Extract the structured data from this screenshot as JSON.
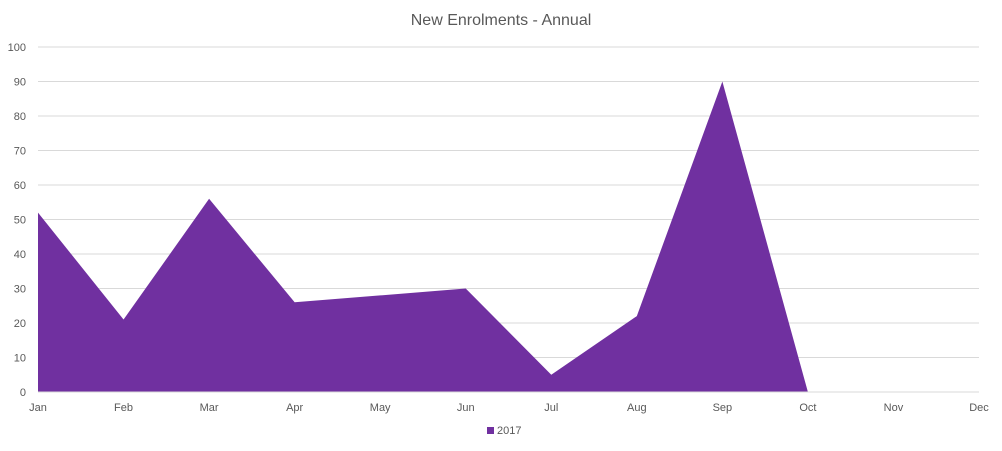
{
  "chart_data": {
    "type": "area",
    "title": "New Enrolments - Annual",
    "xlabel": "",
    "ylabel": "",
    "categories": [
      "Jan",
      "Feb",
      "Mar",
      "Apr",
      "May",
      "Jun",
      "Jul",
      "Aug",
      "Sep",
      "Oct",
      "Nov",
      "Dec"
    ],
    "series": [
      {
        "name": "2017",
        "color": "#7030a0",
        "values": [
          52,
          21,
          56,
          26,
          28,
          30,
          5,
          22,
          90,
          0,
          null,
          null
        ]
      }
    ],
    "ylim": [
      0,
      100
    ],
    "yticks": [
      0,
      10,
      20,
      30,
      40,
      50,
      60,
      70,
      80,
      90,
      100
    ],
    "grid": true,
    "legend_position": "bottom"
  }
}
